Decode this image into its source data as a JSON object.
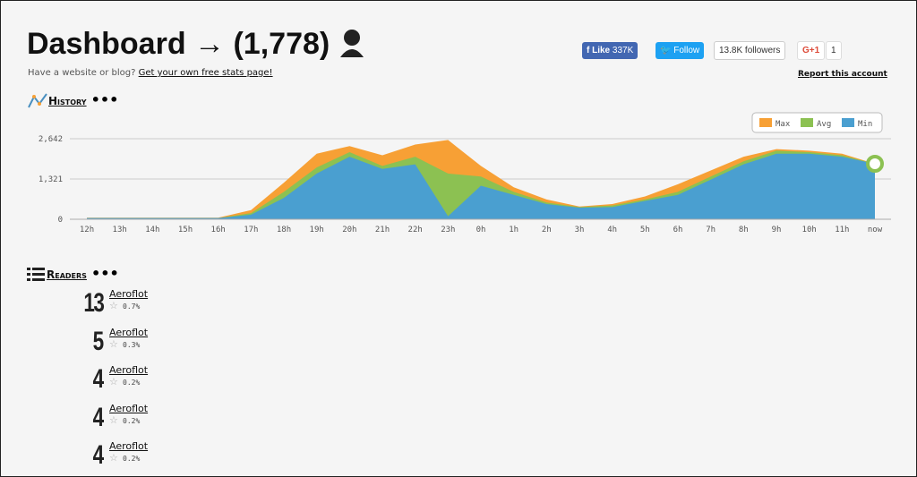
{
  "header": {
    "title": "Dashboard → (1,778)",
    "subtitle": "Have a website or blog?",
    "link": "Get your own free stats page!",
    "report": "Report this account"
  },
  "social": {
    "like": "Like",
    "like_count": "337K",
    "follow": "Follow",
    "followers": "13.8K followers",
    "gplus": "G+1",
    "gplus_count": "1"
  },
  "history": {
    "title": "History"
  },
  "chart_data": {
    "type": "area",
    "categories": [
      "12h",
      "13h",
      "14h",
      "15h",
      "16h",
      "17h",
      "18h",
      "19h",
      "20h",
      "21h",
      "22h",
      "23h",
      "0h",
      "1h",
      "2h",
      "3h",
      "4h",
      "5h",
      "6h",
      "7h",
      "8h",
      "9h",
      "10h",
      "11h",
      "now"
    ],
    "series": [
      {
        "name": "Max",
        "color": "#f7a035",
        "values": [
          50,
          50,
          50,
          50,
          50,
          300,
          1200,
          2150,
          2400,
          2100,
          2450,
          2600,
          1750,
          1050,
          650,
          420,
          500,
          750,
          1150,
          1600,
          2050,
          2300,
          2250,
          2150,
          1820
        ]
      },
      {
        "name": "Avg",
        "color": "#8cc152",
        "values": [
          40,
          40,
          40,
          40,
          40,
          200,
          900,
          1700,
          2200,
          1750,
          2050,
          1500,
          1400,
          900,
          550,
          400,
          450,
          650,
          900,
          1400,
          1900,
          2250,
          2200,
          2100,
          1820
        ]
      },
      {
        "name": "Min",
        "color": "#4a9fd0",
        "values": [
          40,
          40,
          40,
          40,
          40,
          150,
          700,
          1500,
          2050,
          1650,
          1800,
          100,
          1100,
          800,
          500,
          380,
          400,
          600,
          800,
          1300,
          1800,
          2150,
          2150,
          2050,
          1820
        ]
      }
    ],
    "ylim": [
      0,
      2642
    ],
    "yticks": [
      0,
      {
        "value": 1321,
        "label": "1,321"
      },
      {
        "value": 2642,
        "label": "2,642"
      }
    ],
    "grid": true,
    "legend": "top-right"
  },
  "readers": {
    "title": "Readers",
    "items": [
      {
        "count": 13,
        "name": "Aeroflot",
        "share": "0.7%"
      },
      {
        "count": 5,
        "name": "Aeroflot",
        "share": "0.3%"
      },
      {
        "count": 4,
        "name": "Aeroflot",
        "share": "0.2%"
      },
      {
        "count": 4,
        "name": "Aeroflot",
        "share": "0.2%"
      },
      {
        "count": 4,
        "name": "Aeroflot",
        "share": "0.2%"
      }
    ]
  }
}
